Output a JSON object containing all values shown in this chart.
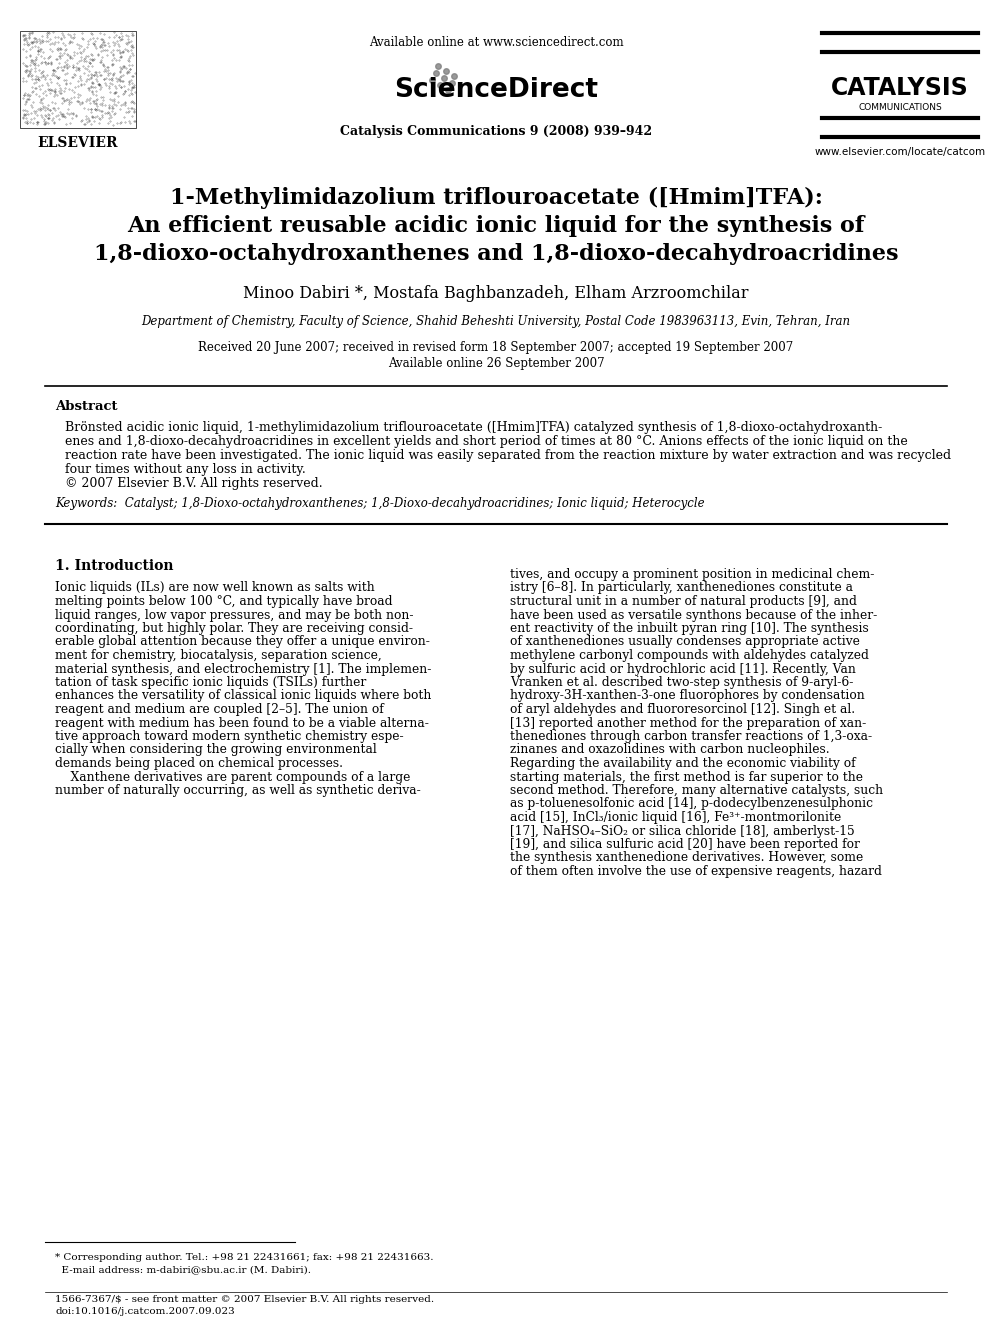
{
  "bg_color": "#ffffff",
  "title_line1": "1-Methylimidazolium triflouroacetate ([Hmim]TFA):",
  "title_line2": "An efficient reusable acidic ionic liquid for the synthesis of",
  "title_line3": "1,8-dioxo-octahydroxanthenes and 1,8-dioxo-decahydroacridines",
  "authors": "Minoo Dabiri *, Mostafa Baghbanzadeh, Elham Arzroomchilar",
  "affiliation": "Department of Chemistry, Faculty of Science, Shahid Beheshti University, Postal Code 1983963113, Evin, Tehran, Iran",
  "received": "Received 20 June 2007; received in revised form 18 September 2007; accepted 19 September 2007",
  "available": "Available online 26 September 2007",
  "journal_info": "Catalysis Communications 9 (2008) 939–942",
  "header_url": "Available online at www.sciencedirect.com",
  "sciencedirect": "ScienceDirect",
  "catalysis": "CATALYSIS",
  "communications": "COMMUNICATIONS",
  "elsevier": "ELSEVIER",
  "website": "www.elsevier.com/locate/catcom",
  "abstract_title": "Abstract",
  "abstract_text": "Brönsted acidic ionic liquid, 1-methylimidazolium triflouroacetate ([Hmim]TFA) catalyzed synthesis of 1,8-dioxo-octahydroxanth-\nenes and 1,8-dioxo-decahydroacridines in excellent yields and short period of times at 80 °C. Anions effects of the ionic liquid on the\nreaction rate have been investigated. The ionic liquid was easily separated from the reaction mixture by water extraction and was recycled\nfour times without any loss in activity.\n© 2007 Elsevier B.V. All rights reserved.",
  "keywords": "Keywords:  Catalyst; 1,8-Dioxo-octahydroxanthenes; 1,8-Dioxo-decahydroacridines; Ionic liquid; Heterocycle",
  "section1_title": "1. Introduction",
  "intro_col1": "Ionic liquids (ILs) are now well known as salts with\nmelting points below 100 °C, and typically have broad\nliquid ranges, low vapor pressures, and may be both non-\ncoordinating, but highly polar. They are receiving consid-\nerable global attention because they offer a unique environ-\nment for chemistry, biocatalysis, separation science,\nmaterial synthesis, and electrochemistry [1]. The implemen-\ntation of task specific ionic liquids (TSILs) further\nenhances the versatility of classical ionic liquids where both\nreagent and medium are coupled [2–5]. The union of\nreagent with medium has been found to be a viable alterna-\ntive approach toward modern synthetic chemistry espe-\ncially when considering the growing environmental\ndemands being placed on chemical processes.\n    Xanthene derivatives are parent compounds of a large\nnumber of naturally occurring, as well as synthetic deriva-",
  "intro_col2": "tives, and occupy a prominent position in medicinal chem-\nistry [6–8]. In particularly, xanthenediones constitute a\nstructural unit in a number of natural products [9], and\nhave been used as versatile synthons because of the inher-\nent reactivity of the inbuilt pyran ring [10]. The synthesis\nof xanthenediones usually condenses appropriate active\nmethylene carbonyl compounds with aldehydes catalyzed\nby sulfuric acid or hydrochloric acid [11]. Recently, Van\nVranken et al. described two-step synthesis of 9-aryl-6-\nhydroxy-3H-xanthen-3-one fluorophores by condensation\nof aryl aldehydes and fluororesorcinol [12]. Singh et al.\n[13] reported another method for the preparation of xan-\nthenediones through carbon transfer reactions of 1,3-oxa-\nzinanes and oxazolidines with carbon nucleophiles.\nRegarding the availability and the economic viability of\nstarting materials, the first method is far superior to the\nsecond method. Therefore, many alternative catalysts, such\nas p-toluenesolfonic acid [14], p-dodecylbenzenesulphonic\nacid [15], InCl₃/ionic liquid [16], Fe³⁺-montmorilonite\n[17], NaHSO₄–SiO₂ or silica chloride [18], amberlyst-15\n[19], and silica sulfuric acid [20] have been reported for\nthe synthesis xanthenedione derivatives. However, some\nof them often involve the use of expensive reagents, hazard",
  "footnote_line1": "* Corresponding author. Tel.: +98 21 22431661; fax: +98 21 22431663.",
  "footnote_line2": "  E-mail address: m-dabiri@sbu.ac.ir (M. Dabiri).",
  "footer_line1": "1566-7367/$ - see front matter © 2007 Elsevier B.V. All rights reserved.",
  "footer_line2": "doi:10.1016/j.catcom.2007.09.023"
}
